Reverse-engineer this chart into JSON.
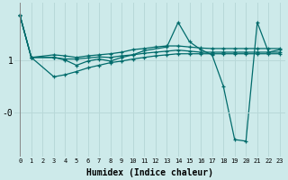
{
  "xlabel": "Humidex (Indice chaleur)",
  "background_color": "#cdeaea",
  "line_color": "#006b6b",
  "grid_color": "#b8d8d8",
  "xlim": [
    -0.5,
    23.5
  ],
  "ylim": [
    -0.85,
    2.1
  ],
  "yticks": [
    1.0,
    0.0
  ],
  "ytick_labels": [
    "1",
    "-0"
  ],
  "xticks": [
    0,
    1,
    2,
    3,
    4,
    5,
    6,
    7,
    8,
    9,
    10,
    11,
    12,
    13,
    14,
    15,
    16,
    17,
    18,
    19,
    20,
    21,
    22,
    23
  ],
  "series": [
    {
      "x": [
        0,
        1,
        3,
        4,
        5,
        6,
        7,
        8,
        9,
        10,
        11,
        12,
        13,
        14,
        15,
        16,
        17,
        18,
        19,
        20,
        21,
        22,
        23
      ],
      "y": [
        1.85,
        1.05,
        1.1,
        1.08,
        1.05,
        1.08,
        1.1,
        1.12,
        1.15,
        1.2,
        1.22,
        1.25,
        1.27,
        1.27,
        1.25,
        1.23,
        1.22,
        1.22,
        1.22,
        1.22,
        1.22,
        1.22,
        1.22
      ]
    },
    {
      "x": [
        0,
        1,
        3,
        4,
        5,
        6,
        7,
        8,
        9,
        10,
        11,
        12,
        13,
        14,
        15,
        16,
        17,
        18,
        19,
        20,
        21,
        22,
        23
      ],
      "y": [
        1.85,
        1.05,
        1.05,
        1.02,
        1.02,
        1.04,
        1.06,
        1.05,
        1.08,
        1.1,
        1.13,
        1.15,
        1.17,
        1.19,
        1.17,
        1.15,
        1.15,
        1.15,
        1.15,
        1.15,
        1.15,
        1.15,
        1.15
      ]
    },
    {
      "x": [
        0,
        1,
        3,
        4,
        5,
        6,
        7,
        8,
        9,
        10,
        11,
        13,
        14,
        15,
        16,
        17,
        18,
        19,
        20,
        21,
        22,
        23
      ],
      "y": [
        1.85,
        1.05,
        1.05,
        1.0,
        0.9,
        0.98,
        1.02,
        0.98,
        1.05,
        1.1,
        1.18,
        1.25,
        1.72,
        1.35,
        1.2,
        1.1,
        0.5,
        -0.52,
        -0.55,
        1.72,
        1.15,
        1.2
      ]
    },
    {
      "x": [
        0,
        1,
        3,
        4,
        5,
        6,
        7,
        8,
        9,
        10,
        11,
        12,
        13,
        14,
        15,
        16,
        17,
        18,
        19,
        20,
        21,
        22,
        23
      ],
      "y": [
        1.85,
        1.05,
        0.68,
        0.72,
        0.78,
        0.85,
        0.9,
        0.95,
        0.98,
        1.02,
        1.05,
        1.08,
        1.1,
        1.12,
        1.12,
        1.12,
        1.12,
        1.12,
        1.12,
        1.12,
        1.12,
        1.12,
        1.12
      ]
    }
  ]
}
